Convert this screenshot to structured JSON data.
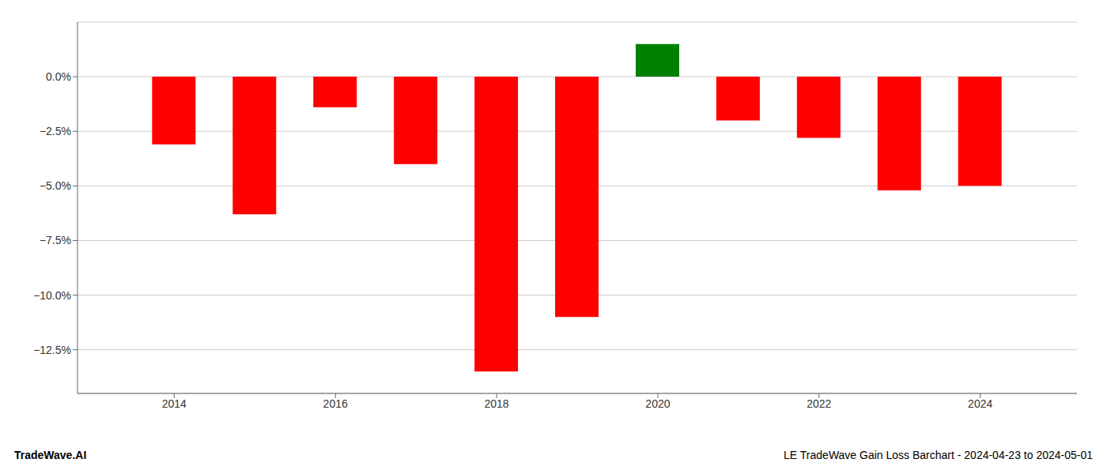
{
  "chart_data": {
    "type": "bar",
    "title": "LE TradeWave Gain Loss Barchart - 2024-04-23 to 2024-05-01",
    "annotations": [
      "TradeWave.AI"
    ],
    "x": [
      2014,
      2015,
      2016,
      2017,
      2018,
      2019,
      2020,
      2021,
      2022,
      2023,
      2024
    ],
    "values": [
      -3.1,
      -6.3,
      -1.4,
      -4.0,
      -13.5,
      -11.0,
      1.5,
      -2.0,
      -2.8,
      -5.2,
      -5.0
    ],
    "colors": [
      "red",
      "red",
      "red",
      "red",
      "red",
      "red",
      "green",
      "red",
      "red",
      "red",
      "red"
    ],
    "xlim": [
      2012.8,
      2025.2
    ],
    "xticks": [
      2014,
      2016,
      2018,
      2020,
      2022,
      2024
    ],
    "ylim": [
      -14.5,
      2.5
    ],
    "yticks": [
      {
        "value": 0.0,
        "label": "0.0%"
      },
      {
        "value": -2.5,
        "label": "−2.5%"
      },
      {
        "value": -5.0,
        "label": "−5.0%"
      },
      {
        "value": -7.5,
        "label": "−7.5%"
      },
      {
        "value": -10.0,
        "label": "−10.0%"
      },
      {
        "value": -12.5,
        "label": "−12.5%"
      }
    ],
    "grid": true
  }
}
